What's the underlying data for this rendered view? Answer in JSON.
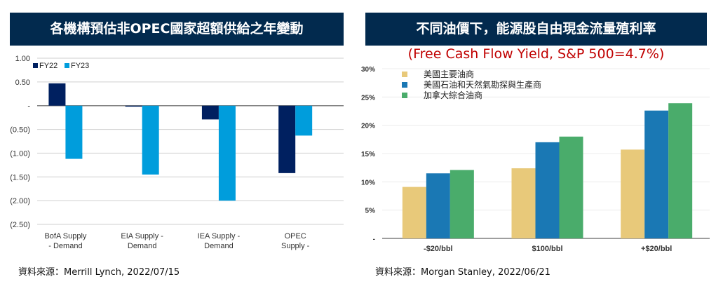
{
  "chart_data": [
    {
      "type": "bar",
      "title": "各機構預估非OPEC國家超額供給之年變動",
      "categories": [
        [
          "BofA Supply",
          "- Demand"
        ],
        [
          "EIA Supply -",
          "Demand"
        ],
        [
          "IEA Supply -",
          "Demand"
        ],
        [
          "OPEC",
          "Supply -"
        ]
      ],
      "series": [
        {
          "name": "FY22",
          "color": "#002060",
          "values": [
            0.47,
            -0.02,
            -0.29,
            -1.42
          ]
        },
        {
          "name": "FY23",
          "color": "#009ddc",
          "values": [
            -1.12,
            -1.45,
            -2.0,
            -0.63
          ]
        }
      ],
      "yticks": [
        1.0,
        0.5,
        0,
        -0.5,
        -1.0,
        -1.5,
        -2.0,
        -2.5
      ],
      "ytick_labels": [
        "1.00",
        "0.50",
        "-",
        "(0.50)",
        "(1.00)",
        "(1.50)",
        "(2.00)",
        "(2.50)"
      ],
      "ylim": [
        -2.5,
        1.0
      ],
      "grid": true,
      "legend": "top-left",
      "source": "資料來源：Merrill Lynch, 2022/07/15"
    },
    {
      "type": "bar",
      "title": "不同油價下，能源股自由現金流量殖利率",
      "subtitle": "(Free Cash Flow Yield, S&P 500=4.7%)",
      "categories": [
        "-$20/bbl",
        "$100/bbl",
        "+$20/bbl"
      ],
      "series": [
        {
          "name": "美國主要油商",
          "color": "#e8c97a",
          "values": [
            9.1,
            12.4,
            15.7
          ]
        },
        {
          "name": "美國石油和天然氣勘探與生產商",
          "color": "#1a78b4",
          "values": [
            11.5,
            17.0,
            22.6
          ]
        },
        {
          "name": "加拿大綜合油商",
          "color": "#4aac6b",
          "values": [
            12.1,
            18.0,
            23.9
          ]
        }
      ],
      "yticks": [
        30,
        25,
        20,
        15,
        10,
        5,
        0
      ],
      "ytick_labels": [
        "30%",
        "25%",
        "20%",
        "15%",
        "10%",
        "5%",
        "-"
      ],
      "ylim": [
        0,
        30
      ],
      "grid": true,
      "legend": "top-left",
      "source": "資料來源：Morgan Stanley, 2022/06/21"
    }
  ]
}
